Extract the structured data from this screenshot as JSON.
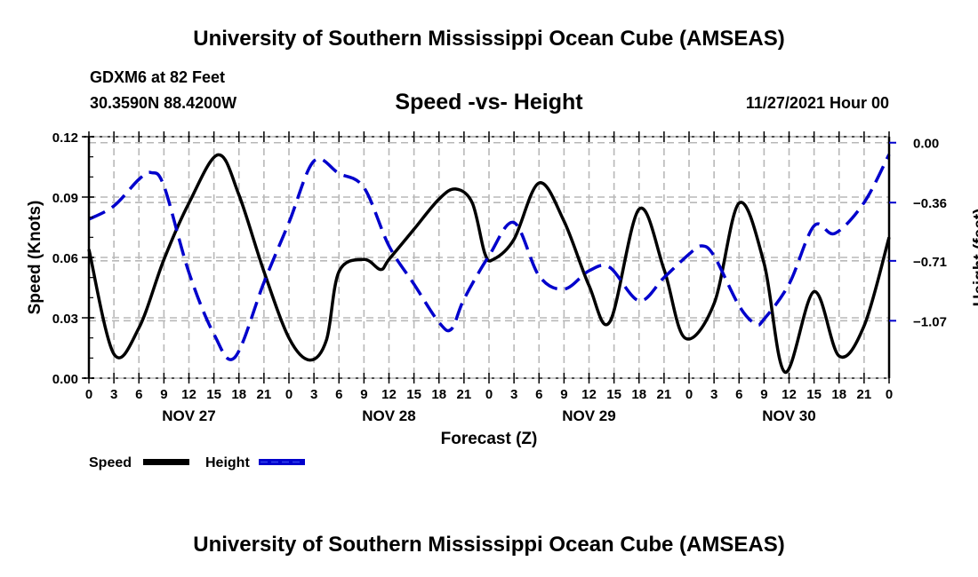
{
  "header": {
    "title": "University of Southern Mississippi Ocean Cube (AMSEAS)",
    "station": "GDXM6 at 82 Feet",
    "coords": "30.3590N  88.4200W",
    "subtitle": "Speed -vs- Height",
    "datetime": "11/27/2021 Hour 00"
  },
  "footer": {
    "title": "University of Southern Mississippi Ocean Cube (AMSEAS)"
  },
  "chart_data": {
    "type": "line",
    "title": "Speed -vs- Height",
    "xlabel": "Forecast (Z)",
    "ylabel": "Speed (Knots)",
    "y2label": "Height (feet)",
    "xlim": [
      0,
      96
    ],
    "ylim": [
      0.0,
      0.12
    ],
    "y2lim": [
      -1.415,
      0.036
    ],
    "grid": true,
    "x_tick_hours": [
      0,
      3,
      6,
      9,
      12,
      15,
      18,
      21,
      24,
      27,
      30,
      33,
      36,
      39,
      42,
      45,
      48,
      51,
      54,
      57,
      60,
      63,
      66,
      69,
      72,
      75,
      78,
      81,
      84,
      87,
      90,
      93,
      96
    ],
    "x_tick_labels": [
      "0",
      "3",
      "6",
      "9",
      "12",
      "15",
      "18",
      "21",
      "0",
      "3",
      "6",
      "9",
      "12",
      "15",
      "18",
      "21",
      "0",
      "3",
      "6",
      "9",
      "12",
      "15",
      "18",
      "21",
      "0",
      "3",
      "6",
      "9",
      "12",
      "15",
      "18",
      "21",
      "0"
    ],
    "day_labels": [
      {
        "label": "NOV 27",
        "hour": 12
      },
      {
        "label": "NOV 28",
        "hour": 36
      },
      {
        "label": "NOV 29",
        "hour": 60
      },
      {
        "label": "NOV 30",
        "hour": 84
      }
    ],
    "y_ticks": [
      0.0,
      0.03,
      0.06,
      0.09,
      0.12
    ],
    "y_tick_labels": [
      "0.00",
      "0.03",
      "0.06",
      "0.09",
      "0.12"
    ],
    "y2_ticks": [
      0.0,
      -0.36,
      -0.71,
      -1.07
    ],
    "y2_tick_labels": [
      "0.00",
      "−0.36",
      "−0.71",
      "−1.07"
    ],
    "legend": {
      "placement": "bottom-left",
      "entries": [
        {
          "label": "Speed",
          "color": "#000000",
          "style": "solid"
        },
        {
          "label": "Height",
          "color": "#0000cc",
          "style": "dashed"
        }
      ]
    },
    "series": [
      {
        "name": "Speed",
        "axis": "left",
        "color": "#000000",
        "style": "solid",
        "x": [
          0,
          3,
          6,
          9,
          12,
          15.5,
          18,
          21,
          24,
          26.5,
          28.5,
          30,
          33,
          35,
          36,
          39,
          42,
          44,
          46,
          47.5,
          48.5,
          51,
          54,
          57,
          60,
          62.5,
          66,
          69,
          71.5,
          75,
          78,
          81,
          83.5,
          87,
          90,
          93,
          96
        ],
        "values": [
          0.064,
          0.012,
          0.025,
          0.059,
          0.087,
          0.111,
          0.091,
          0.053,
          0.02,
          0.009,
          0.019,
          0.053,
          0.059,
          0.054,
          0.059,
          0.074,
          0.089,
          0.094,
          0.087,
          0.062,
          0.059,
          0.069,
          0.097,
          0.078,
          0.046,
          0.028,
          0.084,
          0.054,
          0.02,
          0.037,
          0.087,
          0.057,
          0.003,
          0.043,
          0.011,
          0.026,
          0.07
        ]
      },
      {
        "name": "Height",
        "axis": "right",
        "color": "#0000cc",
        "style": "dashed",
        "x": [
          0,
          3,
          6,
          7.5,
          9,
          12,
          15,
          17.5,
          21,
          24,
          27,
          30,
          33,
          36,
          39,
          42,
          43.5,
          45,
          48,
          51,
          54,
          57,
          60,
          62.5,
          66,
          69,
          72,
          73.5,
          75,
          78,
          80,
          81,
          84,
          87,
          89.5,
          93,
          96
        ],
        "values": [
          -0.46,
          -0.38,
          -0.22,
          -0.18,
          -0.26,
          -0.78,
          -1.15,
          -1.29,
          -0.84,
          -0.48,
          -0.11,
          -0.185,
          -0.27,
          -0.62,
          -0.85,
          -1.08,
          -1.12,
          -0.94,
          -0.68,
          -0.48,
          -0.8,
          -0.88,
          -0.77,
          -0.75,
          -0.95,
          -0.81,
          -0.67,
          -0.62,
          -0.68,
          -0.98,
          -1.09,
          -1.06,
          -0.85,
          -0.5,
          -0.545,
          -0.36,
          -0.07
        ]
      }
    ]
  }
}
